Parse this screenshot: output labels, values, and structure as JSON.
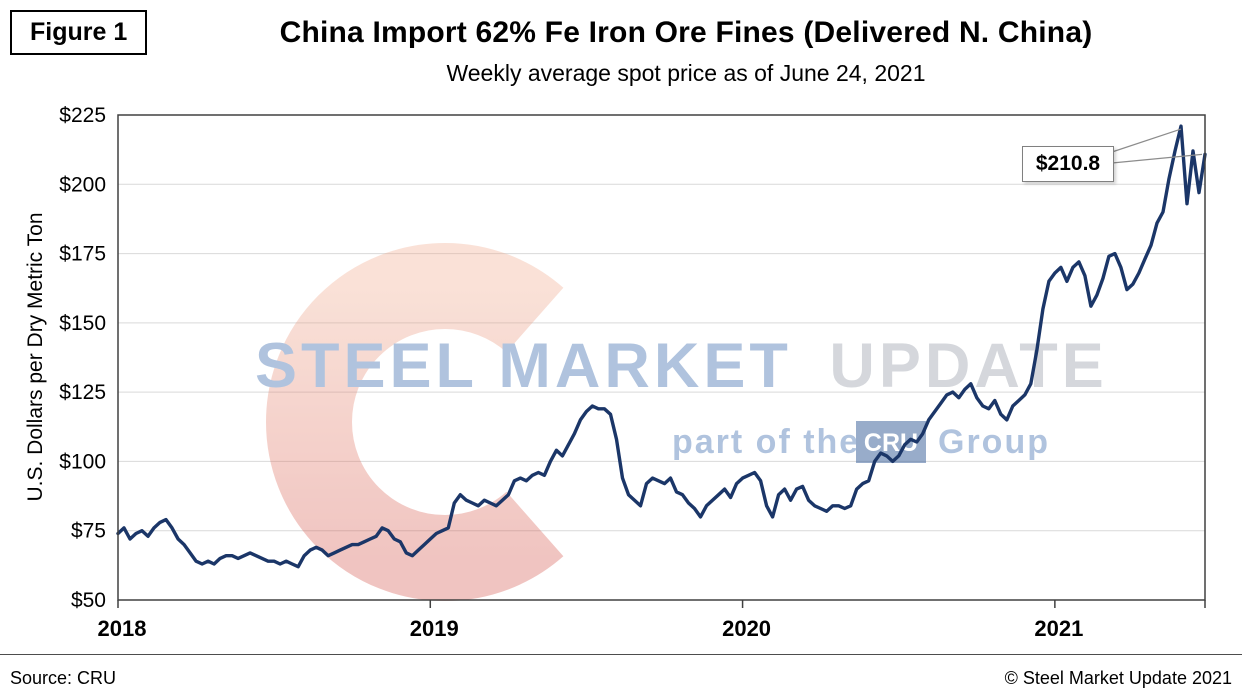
{
  "figure_label": "Figure 1",
  "footer": {
    "source": "Source: CRU",
    "copyright": "© Steel Market Update 2021"
  },
  "watermark": {
    "line1_part1": "STEEL MARKET",
    "line1_part2": "UPDATE",
    "line2_prefix": "part of the",
    "line2_box": "CRU",
    "line2_suffix": "Group",
    "crescent_color_top": "#f0a98c",
    "crescent_color_bottom": "#d5544a",
    "text_color": "#6f93c4"
  },
  "chart_data": {
    "type": "line",
    "title": "China Import 62% Fe Iron Ore Fines (Delivered N. China)",
    "subtitle": "Weekly average spot price as of June 24, 2021",
    "xlabel": "",
    "ylabel": "U.S. Dollars per Dry Metric Ton",
    "ylim": [
      50,
      225
    ],
    "ytick_step": 25,
    "ytick_prefix": "$",
    "grid": "horizontal",
    "legend": "none",
    "x_tick_labels": [
      "2018",
      "2019",
      "2020",
      "2021"
    ],
    "x_tick_positions": [
      0,
      52,
      104,
      156
    ],
    "x_unit": "weeks since start of 2018",
    "annotation": {
      "text": "$210.8",
      "value": 210.8,
      "target": "last point (week of June 24, 2021)"
    },
    "series": [
      {
        "name": "Weekly average spot price (USD per dry metric ton)",
        "color": "#1b3668",
        "values": [
          74,
          76,
          72,
          74,
          75,
          73,
          76,
          78,
          79,
          76,
          72,
          70,
          67,
          64,
          63,
          64,
          63,
          65,
          66,
          66,
          65,
          66,
          67,
          66,
          65,
          64,
          64,
          63,
          64,
          63,
          62,
          66,
          68,
          69,
          68,
          66,
          67,
          68,
          69,
          70,
          70,
          71,
          72,
          73,
          76,
          75,
          72,
          71,
          67,
          66,
          68,
          70,
          72,
          74,
          75,
          76,
          85,
          88,
          86,
          85,
          84,
          86,
          85,
          84,
          86,
          88,
          93,
          94,
          93,
          95,
          96,
          95,
          100,
          104,
          102,
          106,
          110,
          115,
          118,
          120,
          119,
          119,
          117,
          108,
          94,
          88,
          86,
          84,
          92,
          94,
          93,
          92,
          94,
          89,
          88,
          85,
          83,
          80,
          84,
          86,
          88,
          90,
          87,
          92,
          94,
          95,
          96,
          93,
          84,
          80,
          88,
          90,
          86,
          90,
          91,
          86,
          84,
          83,
          82,
          84,
          84,
          83,
          84,
          90,
          92,
          93,
          100,
          103,
          102,
          100,
          102,
          106,
          108,
          107,
          110,
          115,
          118,
          121,
          124,
          125,
          123,
          126,
          128,
          123,
          120,
          119,
          122,
          117,
          115,
          120,
          122,
          124,
          128,
          140,
          155,
          165,
          168,
          170,
          165,
          170,
          172,
          167,
          156,
          160,
          166,
          174,
          175,
          170,
          162,
          164,
          168,
          173,
          178,
          186,
          190,
          202,
          212,
          221,
          193,
          212,
          197,
          210.8
        ]
      }
    ]
  }
}
